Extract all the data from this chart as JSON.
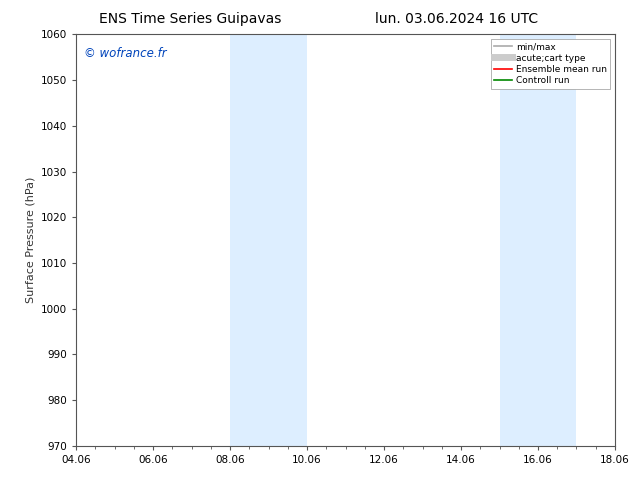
{
  "title_left": "ENS Time Series Guipavas",
  "title_right": "lun. 03.06.2024 16 UTC",
  "ylabel": "Surface Pressure (hPa)",
  "ylim": [
    970,
    1060
  ],
  "yticks": [
    970,
    980,
    990,
    1000,
    1010,
    1020,
    1030,
    1040,
    1050,
    1060
  ],
  "xlim_start": 0,
  "xlim_end": 14,
  "xtick_labels": [
    "04.06",
    "06.06",
    "08.06",
    "10.06",
    "12.06",
    "14.06",
    "16.06",
    "18.06"
  ],
  "xtick_positions": [
    0,
    2,
    4,
    6,
    8,
    10,
    12,
    14
  ],
  "shaded_bands": [
    {
      "xstart": 4,
      "xend": 6
    },
    {
      "xstart": 11,
      "xend": 13
    }
  ],
  "shaded_color": "#ddeeff",
  "watermark": "© wofrance.fr",
  "watermark_color": "#0044bb",
  "legend_entries": [
    {
      "label": "min/max",
      "color": "#aaaaaa",
      "linestyle": "-",
      "linewidth": 1.2
    },
    {
      "label": "acute;cart type",
      "color": "#cccccc",
      "linestyle": "-",
      "linewidth": 5
    },
    {
      "label": "Ensemble mean run",
      "color": "#ff0000",
      "linestyle": "-",
      "linewidth": 1.2
    },
    {
      "label": "Controll run",
      "color": "#008800",
      "linestyle": "-",
      "linewidth": 1.2
    }
  ],
  "bg_color": "#ffffff",
  "spine_color": "#555555",
  "tick_color": "#555555",
  "title_fontsize": 10,
  "axis_label_fontsize": 8,
  "tick_fontsize": 7.5,
  "watermark_fontsize": 8.5
}
